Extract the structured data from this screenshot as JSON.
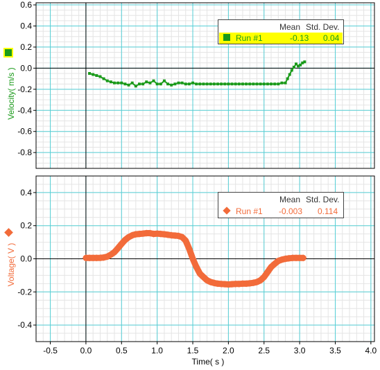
{
  "chart_data": [
    {
      "type": "scatter",
      "ylabel": "Velocity( m/s )",
      "ylim": [
        -0.95,
        0.62
      ],
      "xlim": [
        -0.7,
        4.05
      ],
      "yticks": [
        0.6,
        0.4,
        0.2,
        0.0,
        -0.2,
        -0.4,
        -0.6,
        -0.8
      ],
      "ytick_labels": [
        "0.6",
        "0.4",
        "0.2",
        "0.0",
        "-0.2",
        "-0.4",
        "-0.6",
        "-0.8"
      ],
      "grid": true,
      "legend_placement": "top-right",
      "legend_headers": [
        "Mean",
        "Std. Dev."
      ],
      "marker": "square",
      "series": [
        {
          "name": "Run #1",
          "mean": "-0.13",
          "std_dev": "0.04",
          "color": "#1a9a1a",
          "x": [
            0.05,
            0.1,
            0.15,
            0.2,
            0.25,
            0.3,
            0.35,
            0.4,
            0.45,
            0.5,
            0.55,
            0.6,
            0.65,
            0.7,
            0.75,
            0.8,
            0.85,
            0.9,
            0.95,
            1.0,
            1.05,
            1.1,
            1.15,
            1.2,
            1.25,
            1.3,
            1.35,
            1.4,
            1.45,
            1.5,
            1.55,
            1.6,
            1.65,
            1.7,
            1.75,
            1.8,
            1.85,
            1.9,
            1.95,
            2.0,
            2.05,
            2.1,
            2.15,
            2.2,
            2.25,
            2.3,
            2.35,
            2.4,
            2.45,
            2.5,
            2.55,
            2.6,
            2.65,
            2.7,
            2.75,
            2.8,
            2.83,
            2.86,
            2.89,
            2.92,
            2.95,
            2.98,
            3.01,
            3.04,
            3.07
          ],
          "y": [
            -0.05,
            -0.06,
            -0.07,
            -0.08,
            -0.1,
            -0.12,
            -0.13,
            -0.14,
            -0.14,
            -0.14,
            -0.15,
            -0.16,
            -0.14,
            -0.17,
            -0.15,
            -0.15,
            -0.13,
            -0.14,
            -0.12,
            -0.15,
            -0.15,
            -0.12,
            -0.15,
            -0.16,
            -0.15,
            -0.14,
            -0.14,
            -0.15,
            -0.15,
            -0.14,
            -0.15,
            -0.15,
            -0.15,
            -0.15,
            -0.15,
            -0.15,
            -0.15,
            -0.15,
            -0.15,
            -0.15,
            -0.15,
            -0.15,
            -0.15,
            -0.15,
            -0.15,
            -0.15,
            -0.15,
            -0.15,
            -0.15,
            -0.15,
            -0.15,
            -0.15,
            -0.15,
            -0.15,
            -0.14,
            -0.14,
            -0.1,
            -0.06,
            -0.02,
            0.01,
            0.04,
            0.02,
            0.03,
            0.05,
            0.06
          ]
        }
      ]
    },
    {
      "type": "scatter",
      "xlabel": "Time( s )",
      "ylabel": "Voltage( V )",
      "ylim": [
        -0.5,
        0.5
      ],
      "xlim": [
        -0.7,
        4.05
      ],
      "xticks": [
        -0.5,
        0.0,
        0.5,
        1.0,
        1.5,
        2.0,
        2.5,
        3.0,
        3.5,
        4.0
      ],
      "xtick_labels": [
        "-0.5",
        "0.0",
        "0.5",
        "1.0",
        "1.5",
        "2.0",
        "2.5",
        "3.0",
        "3.5",
        "4.0"
      ],
      "yticks": [
        0.4,
        0.2,
        0.0,
        -0.2,
        -0.4
      ],
      "ytick_labels": [
        "0.4",
        "0.2",
        "0.0",
        "-0.2",
        "-0.4"
      ],
      "grid": true,
      "legend_placement": "top-right",
      "legend_headers": [
        "Mean",
        "Std. Dev."
      ],
      "marker": "diamond",
      "series": [
        {
          "name": "Run #1",
          "mean": "-0.003",
          "std_dev": "0.114",
          "color": "#f26b3a",
          "x": [
            0.0,
            0.05,
            0.1,
            0.15,
            0.2,
            0.25,
            0.3,
            0.35,
            0.4,
            0.45,
            0.5,
            0.55,
            0.6,
            0.65,
            0.7,
            0.75,
            0.8,
            0.85,
            0.9,
            0.95,
            1.0,
            1.05,
            1.1,
            1.15,
            1.2,
            1.25,
            1.3,
            1.35,
            1.4,
            1.45,
            1.5,
            1.55,
            1.6,
            1.65,
            1.7,
            1.75,
            1.8,
            1.85,
            1.9,
            1.95,
            2.0,
            2.05,
            2.1,
            2.15,
            2.2,
            2.25,
            2.3,
            2.35,
            2.4,
            2.45,
            2.5,
            2.55,
            2.6,
            2.65,
            2.7,
            2.75,
            2.8,
            2.85,
            2.9,
            2.95,
            3.0,
            3.05
          ],
          "y": [
            0.005,
            0.005,
            0.005,
            0.005,
            0.006,
            0.008,
            0.013,
            0.025,
            0.04,
            0.064,
            0.09,
            0.114,
            0.131,
            0.142,
            0.148,
            0.15,
            0.152,
            0.155,
            0.155,
            0.15,
            0.152,
            0.15,
            0.148,
            0.145,
            0.142,
            0.14,
            0.138,
            0.131,
            0.11,
            0.06,
            0.0,
            -0.05,
            -0.09,
            -0.11,
            -0.13,
            -0.14,
            -0.146,
            -0.15,
            -0.152,
            -0.153,
            -0.155,
            -0.153,
            -0.152,
            -0.152,
            -0.15,
            -0.15,
            -0.148,
            -0.145,
            -0.14,
            -0.13,
            -0.11,
            -0.08,
            -0.05,
            -0.03,
            -0.013,
            -0.005,
            0.0,
            0.003,
            0.005,
            0.005,
            0.005,
            0.005
          ]
        }
      ]
    }
  ]
}
